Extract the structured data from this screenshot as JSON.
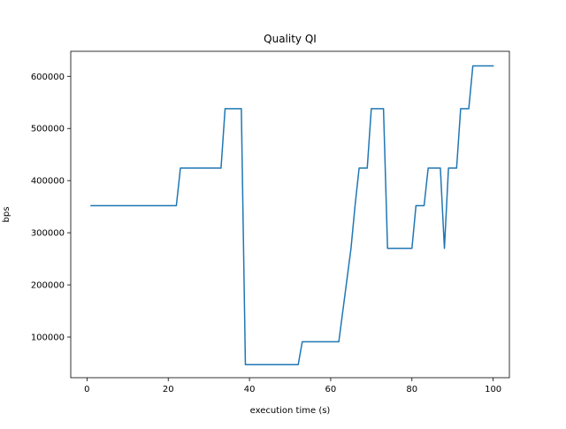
{
  "chart_data": {
    "type": "line",
    "title": "Quality QI",
    "xlabel": "execution time (s)",
    "ylabel": "bps",
    "xlim": [
      -4,
      104
    ],
    "ylim": [
      22000,
      648000
    ],
    "xticks": [
      0,
      20,
      40,
      60,
      80,
      100
    ],
    "yticks": [
      100000,
      200000,
      300000,
      400000,
      500000,
      600000
    ],
    "grid": false,
    "line_color": "#1f77b4",
    "series": [
      {
        "x": [
          1,
          22,
          23,
          33,
          34,
          38,
          39,
          52,
          53,
          61,
          62,
          65,
          66,
          67,
          68,
          69,
          70,
          73,
          74,
          80,
          81,
          82,
          83,
          84,
          85,
          86,
          87,
          88,
          89,
          90,
          91,
          92,
          93,
          94,
          95,
          100
        ],
        "y": [
          352000,
          352000,
          424000,
          424000,
          538000,
          538000,
          47000,
          47000,
          91000,
          91000,
          91000,
          270000,
          352000,
          424000,
          424000,
          424000,
          538000,
          538000,
          270000,
          270000,
          352000,
          352000,
          352000,
          424000,
          424000,
          424000,
          424000,
          270000,
          424000,
          424000,
          424000,
          538000,
          538000,
          538000,
          620000,
          620000
        ]
      }
    ]
  }
}
